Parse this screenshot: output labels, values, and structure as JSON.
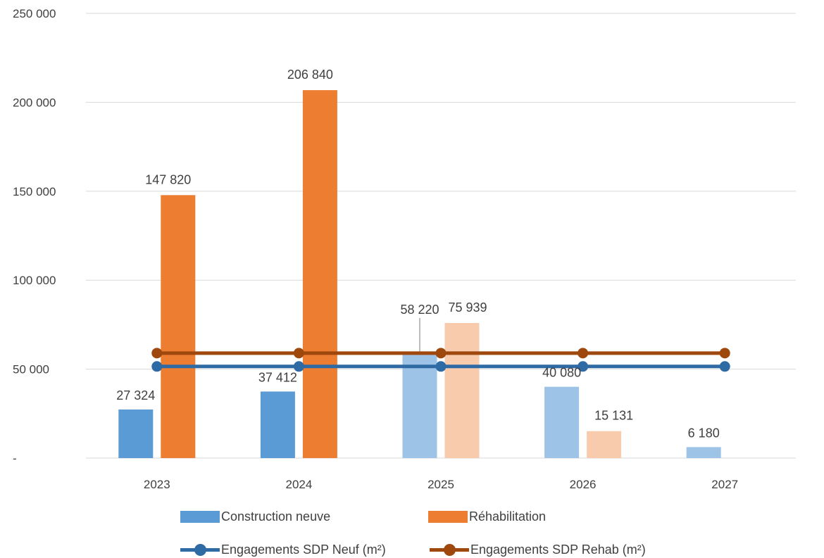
{
  "chart_data": {
    "type": "bar",
    "categories": [
      "2023",
      "2024",
      "2025",
      "2026",
      "2027"
    ],
    "ylim": [
      0,
      250000
    ],
    "y_ticks": [
      {
        "value": 0,
        "label": "-"
      },
      {
        "value": 50000,
        "label": "50 000"
      },
      {
        "value": 100000,
        "label": "100 000"
      },
      {
        "value": 150000,
        "label": "150 000"
      },
      {
        "value": 200000,
        "label": "200 000"
      },
      {
        "value": 250000,
        "label": "250 000"
      }
    ],
    "grid": true,
    "legend_position": "bottom",
    "series": [
      {
        "name": "Construction neuve",
        "kind": "bar",
        "values": [
          27324,
          37412,
          58220,
          40080,
          6180
        ],
        "labels": [
          "27 324",
          "37 412",
          "58 220",
          "40 080",
          "6 180"
        ],
        "colors": [
          "#5b9bd5",
          "#5b9bd5",
          "#9dc3e6",
          "#9dc3e6",
          "#9dc3e6"
        ],
        "legend_color": "#5b9bd5"
      },
      {
        "name": "Réhabilitation",
        "kind": "bar",
        "values": [
          147820,
          206840,
          75939,
          15131,
          null
        ],
        "labels": [
          "147 820",
          "206 840",
          "75 939",
          "15 131",
          ""
        ],
        "colors": [
          "#ed7d31",
          "#ed7d31",
          "#f8cbad",
          "#f8cbad",
          "#f8cbad"
        ],
        "legend_color": "#ed7d31"
      },
      {
        "name": "Engagements SDP Neuf (m²)",
        "kind": "line",
        "values": [
          51500,
          51500,
          51500,
          51500,
          51500
        ],
        "color": "#2e6aa3"
      },
      {
        "name": "Engagements SDP Rehab (m²)",
        "kind": "line",
        "values": [
          59000,
          59000,
          59000,
          59000,
          59000
        ],
        "color": "#9e480e"
      }
    ]
  }
}
